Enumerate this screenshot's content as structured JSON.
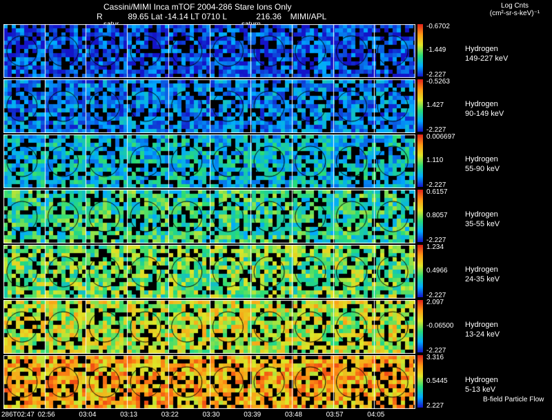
{
  "header": {
    "title": "Cassini/MIMI Inca mTOF  2004-286    Stare    Ions Only",
    "r_label": "R",
    "ephemeris": "89.65 Lat -14.14 LT 0710 L",
    "value": "216.36",
    "institution": "MIMI/APL",
    "loc1": "satur",
    "loc2": "saturn"
  },
  "colorbar_title_line1": "Log Cnts",
  "colorbar_title_line2": "(cm²-sr-s-keV)⁻¹",
  "rows": [
    {
      "species": "Hydrogen",
      "energy": "149-227 keV",
      "max": "-0.6702",
      "mid": "-1.449",
      "min": "-2.227",
      "level": 0.1
    },
    {
      "species": "Hydrogen",
      "energy": "90-149 keV",
      "max": "-0.5263",
      "mid": "1.427",
      "min": "-2.227",
      "level": 0.18
    },
    {
      "species": "Hydrogen",
      "energy": "55-90 keV",
      "max": "0.006697",
      "mid": "1.110",
      "min": "-2.227",
      "level": 0.3
    },
    {
      "species": "Hydrogen",
      "energy": "35-55 keV",
      "max": "0.6157",
      "mid": "0.8057",
      "min": "-2.227",
      "level": 0.42
    },
    {
      "species": "Hydrogen",
      "energy": "24-35 keV",
      "max": "1.234",
      "mid": "0.4966",
      "min": "-2.227",
      "level": 0.5
    },
    {
      "species": "Hydrogen",
      "energy": "13-24 keV",
      "max": "2.097",
      "mid": "-0.06500",
      "min": "-2.227",
      "level": 0.6
    },
    {
      "species": "Hydrogen",
      "energy": "5-13 keV",
      "max": "3.316",
      "mid": "0.5445",
      "min": "2.227",
      "level": 0.75
    }
  ],
  "times": [
    "286T02:47",
    "02:56",
    "03:04",
    "03:13",
    "03:22",
    "03:30",
    "03:39",
    "03:48",
    "03:57",
    "04:05"
  ],
  "footer_label": "B-field Particle Flow"
}
